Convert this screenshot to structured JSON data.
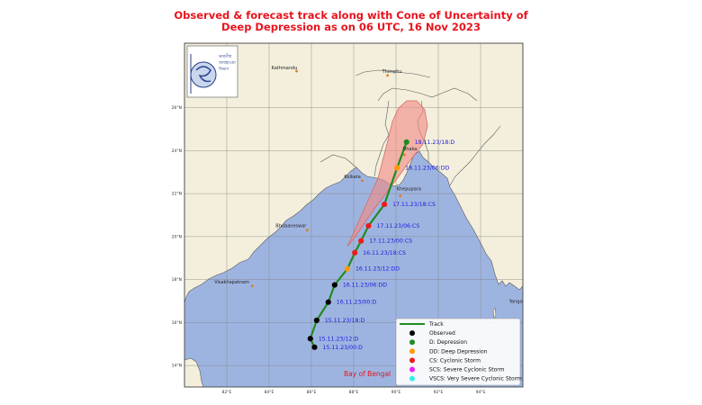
{
  "title": {
    "line1": "Observed & forecast track along with Cone of Uncertainty of",
    "line2": "Deep Depression as on 06 UTC, 16 Nov 2023"
  },
  "logo": {
    "text_lines": [
      "ভারতীয়",
      "আবহাওয়া",
      "বিভাগ"
    ]
  },
  "map": {
    "lon_range": [
      80,
      96
    ],
    "lat_range": [
      13,
      29
    ],
    "lon_ticks": [
      "82°E",
      "84°E",
      "86°E",
      "88°E",
      "90°E",
      "92°E",
      "94°E"
    ],
    "lat_ticks": [
      "14°N",
      "16°N",
      "18°N",
      "20°N",
      "22°N",
      "24°N",
      "26°N"
    ],
    "colors": {
      "land": "#f3efdc",
      "sea": "#9eb4e0",
      "cone": "#f08a84",
      "track": "#1f8c1f"
    },
    "cities": [
      {
        "name": "Kathmandu"
      },
      {
        "name": "Thimphu"
      },
      {
        "name": "Dhaka"
      },
      {
        "name": "Kolkata"
      },
      {
        "name": "Khepupara"
      },
      {
        "name": "Bhubaneswar"
      },
      {
        "name": "Visakhapatnam"
      },
      {
        "name": "Yangon"
      }
    ],
    "sea_label": "Bay of Bengal"
  },
  "track": [
    {
      "time": "15.11.23/00:D",
      "lon": 86.15,
      "lat": 14.85,
      "category": "D",
      "status": "observed"
    },
    {
      "time": "15.11.23/12:D",
      "lon": 85.95,
      "lat": 15.25,
      "category": "D",
      "status": "observed"
    },
    {
      "time": "15.11.23/18:D",
      "lon": 86.25,
      "lat": 16.1,
      "category": "D",
      "status": "observed"
    },
    {
      "time": "16.11.23/00:D",
      "lon": 86.8,
      "lat": 16.95,
      "category": "D",
      "status": "observed"
    },
    {
      "time": "16.11.23/06:DD",
      "lon": 87.1,
      "lat": 17.75,
      "category": "DD",
      "status": "observed"
    },
    {
      "time": "16.11.23/12:DD",
      "lon": 87.7,
      "lat": 18.5,
      "category": "DD",
      "status": "forecast"
    },
    {
      "time": "16.11.23/18:CS",
      "lon": 88.05,
      "lat": 19.25,
      "category": "CS",
      "status": "forecast"
    },
    {
      "time": "17.11.23/00:CS",
      "lon": 88.35,
      "lat": 19.8,
      "category": "CS",
      "status": "forecast"
    },
    {
      "time": "17.11.23/06:CS",
      "lon": 88.7,
      "lat": 20.5,
      "category": "CS",
      "status": "forecast"
    },
    {
      "time": "17.11.23/18:CS",
      "lon": 89.45,
      "lat": 21.5,
      "category": "CS",
      "status": "forecast"
    },
    {
      "time": "18.11.23/06:DD",
      "lon": 90.05,
      "lat": 23.2,
      "category": "DD",
      "status": "forecast"
    },
    {
      "time": "18.11.23/18:D",
      "lon": 90.5,
      "lat": 24.4,
      "category": "D",
      "status": "forecast"
    }
  ],
  "legend": {
    "items": [
      {
        "label": "Track",
        "kind": "line",
        "color": "#1f8c1f"
      },
      {
        "label": "Observed",
        "kind": "dot",
        "color": "#000000"
      },
      {
        "label": "D: Depression",
        "kind": "dot",
        "color": "#1f8c1f"
      },
      {
        "label": "DD: Deep Depression",
        "kind": "dot",
        "color": "#ff9900"
      },
      {
        "label": "CS: Cyclonic Storm",
        "kind": "dot",
        "color": "#ee1c1c"
      },
      {
        "label": "SCS: Severe Cyclonic Storm",
        "kind": "dot",
        "color": "#ee22ee"
      },
      {
        "label": "VSCS: Very Severe Cyclonic Storm",
        "kind": "dot",
        "color": "#33eeee"
      }
    ]
  },
  "category_colors": {
    "observed": "#000000",
    "D": "#1f8c1f",
    "DD": "#ff9900",
    "CS": "#ee1c1c"
  }
}
